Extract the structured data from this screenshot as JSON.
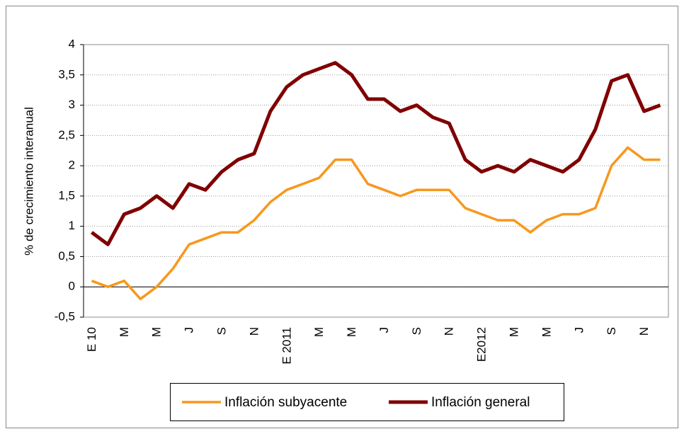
{
  "chart_data": {
    "type": "line",
    "y_label": "% de crecimiento interanual",
    "categories": [
      "E 10",
      null,
      "M",
      null,
      "M",
      null,
      "J",
      null,
      "S",
      null,
      "N",
      null,
      "E 2011",
      null,
      "M",
      null,
      "M",
      null,
      "J",
      null,
      "S",
      null,
      "N",
      null,
      "E2012",
      null,
      "M",
      null,
      "M",
      null,
      "J",
      null,
      "S",
      null,
      "N",
      null
    ],
    "series": [
      {
        "name": "Inflación subyacente",
        "color": "#f7981d",
        "values": [
          0.1,
          0.0,
          0.1,
          -0.2,
          0.0,
          0.3,
          0.7,
          0.8,
          0.9,
          0.9,
          1.1,
          1.4,
          1.6,
          1.7,
          1.8,
          2.1,
          2.1,
          1.7,
          1.6,
          1.5,
          1.6,
          1.6,
          1.6,
          1.3,
          1.2,
          1.1,
          1.1,
          0.9,
          1.1,
          1.2,
          1.2,
          1.3,
          2.0,
          2.3,
          2.1,
          2.1
        ]
      },
      {
        "name": "Inflación general",
        "color": "#800000",
        "values": [
          0.9,
          0.7,
          1.2,
          1.3,
          1.5,
          1.3,
          1.7,
          1.6,
          1.9,
          2.1,
          2.2,
          2.9,
          3.3,
          3.5,
          3.6,
          3.7,
          3.5,
          3.1,
          3.1,
          2.9,
          3.0,
          2.8,
          2.7,
          2.1,
          1.9,
          2.0,
          1.9,
          2.1,
          2.0,
          1.9,
          2.1,
          2.6,
          3.4,
          3.5,
          2.9,
          3.0
        ]
      }
    ],
    "ylim": [
      -0.5,
      4
    ],
    "yticks": [
      {
        "value": -0.5,
        "label": "-0,5"
      },
      0,
      {
        "value": 0.5,
        "label": "0,5"
      },
      1,
      {
        "value": 1.5,
        "label": "1,5"
      },
      2,
      {
        "value": 2.5,
        "label": "2,5"
      },
      3,
      {
        "value": 3.5,
        "label": "3,5"
      },
      4
    ],
    "grid": true,
    "legend": "bottom"
  }
}
